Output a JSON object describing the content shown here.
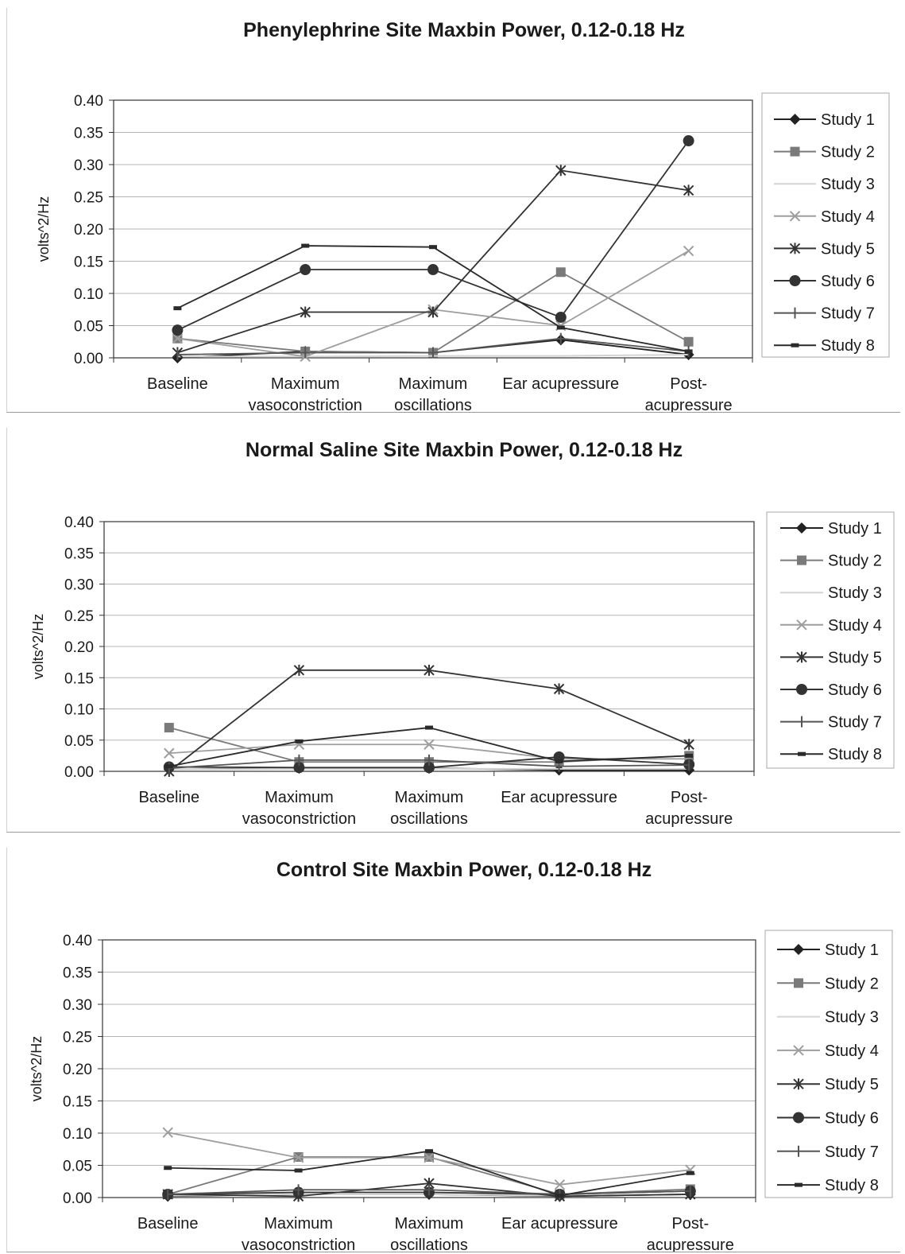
{
  "series_styles": [
    {
      "name": "Study 1",
      "color": "#222222",
      "marker": "diamond"
    },
    {
      "name": "Study 2",
      "color": "#7a7a7a",
      "marker": "square"
    },
    {
      "name": "Study 3",
      "color": "#d4d4d4",
      "marker": "none"
    },
    {
      "name": "Study 4",
      "color": "#9e9e9e",
      "marker": "x"
    },
    {
      "name": "Study 5",
      "color": "#333333",
      "marker": "star"
    },
    {
      "name": "Study 6",
      "color": "#333333",
      "marker": "circle"
    },
    {
      "name": "Study 7",
      "color": "#555555",
      "marker": "plus"
    },
    {
      "name": "Study 8",
      "color": "#2a2a2a",
      "marker": "dash"
    }
  ],
  "chart_data": [
    {
      "type": "line",
      "title": "Phenylephrine Site Maxbin Power, 0.12-0.18 Hz",
      "ylabel": "volts^2/Hz",
      "xlabel": "",
      "ylim": [
        0,
        0.4
      ],
      "yticks": [
        "0.00",
        "0.05",
        "0.10",
        "0.15",
        "0.20",
        "0.25",
        "0.30",
        "0.35",
        "0.40"
      ],
      "categories": [
        [
          "Baseline"
        ],
        [
          "Maximum",
          "vasoconstriction"
        ],
        [
          "Maximum",
          "oscillations"
        ],
        [
          "Ear acupressure"
        ],
        [
          "Post-",
          "acupressure"
        ]
      ],
      "legend_position": "right",
      "series": [
        {
          "name": "Study 1",
          "values": [
            0.0,
            0.01,
            0.008,
            0.028,
            0.005
          ]
        },
        {
          "name": "Study 2",
          "values": [
            0.03,
            0.01,
            0.008,
            0.133,
            0.025
          ]
        },
        {
          "name": "Study 3",
          "values": [
            0.002,
            0.002,
            0.003,
            0.003,
            0.005
          ]
        },
        {
          "name": "Study 4",
          "values": [
            0.03,
            0.002,
            0.075,
            0.05,
            0.166
          ]
        },
        {
          "name": "Study 5",
          "values": [
            0.008,
            0.071,
            0.071,
            0.291,
            0.26
          ]
        },
        {
          "name": "Study 6",
          "values": [
            0.043,
            0.137,
            0.137,
            0.063,
            0.337
          ]
        },
        {
          "name": "Study 7",
          "values": [
            0.005,
            0.008,
            0.008,
            0.03,
            0.01
          ]
        },
        {
          "name": "Study 8",
          "values": [
            0.077,
            0.174,
            0.172,
            0.047,
            0.01
          ]
        }
      ]
    },
    {
      "type": "line",
      "title": "Normal Saline Site Maxbin Power, 0.12-0.18 Hz",
      "ylabel": "volts^2/Hz",
      "xlabel": "",
      "ylim": [
        0,
        0.4
      ],
      "yticks": [
        "0.00",
        "0.05",
        "0.10",
        "0.15",
        "0.20",
        "0.25",
        "0.30",
        "0.35",
        "0.40"
      ],
      "categories": [
        [
          "Baseline"
        ],
        [
          "Maximum",
          "vasoconstriction"
        ],
        [
          "Maximum",
          "oscillations"
        ],
        [
          "Ear acupressure"
        ],
        [
          "Post-",
          "acupressure"
        ]
      ],
      "legend_position": "right",
      "series": [
        {
          "name": "Study 1",
          "values": [
            0.003,
            0.005,
            0.005,
            0.002,
            0.002
          ]
        },
        {
          "name": "Study 2",
          "values": [
            0.07,
            0.015,
            0.015,
            0.015,
            0.025
          ]
        },
        {
          "name": "Study 3",
          "values": [
            0.003,
            0.004,
            0.004,
            0.004,
            0.004
          ]
        },
        {
          "name": "Study 4",
          "values": [
            0.029,
            0.043,
            0.043,
            0.02,
            0.02
          ]
        },
        {
          "name": "Study 5",
          "values": [
            0.0,
            0.162,
            0.162,
            0.132,
            0.043
          ]
        },
        {
          "name": "Study 6",
          "values": [
            0.007,
            0.006,
            0.006,
            0.023,
            0.011
          ]
        },
        {
          "name": "Study 7",
          "values": [
            0.005,
            0.018,
            0.018,
            0.008,
            0.01
          ]
        },
        {
          "name": "Study 8",
          "values": [
            0.008,
            0.048,
            0.07,
            0.016,
            0.025
          ]
        }
      ]
    },
    {
      "type": "line",
      "title": "Control Site Maxbin Power, 0.12-0.18 Hz",
      "ylabel": "volts^2/Hz",
      "xlabel": "",
      "ylim": [
        0,
        0.4
      ],
      "yticks": [
        "0.00",
        "0.05",
        "0.10",
        "0.15",
        "0.20",
        "0.25",
        "0.30",
        "0.35",
        "0.40"
      ],
      "categories": [
        [
          "Baseline"
        ],
        [
          "Maximum",
          "vasoconstriction"
        ],
        [
          "Maximum",
          "oscillations"
        ],
        [
          "Ear acupressure"
        ],
        [
          "Post-",
          "acupressure"
        ]
      ],
      "legend_position": "right",
      "series": [
        {
          "name": "Study 1",
          "values": [
            0.002,
            0.005,
            0.005,
            0.002,
            0.005
          ]
        },
        {
          "name": "Study 2",
          "values": [
            0.005,
            0.063,
            0.063,
            0.005,
            0.013
          ]
        },
        {
          "name": "Study 3",
          "values": [
            0.003,
            0.005,
            0.005,
            0.003,
            0.005
          ]
        },
        {
          "name": "Study 4",
          "values": [
            0.101,
            0.062,
            0.062,
            0.02,
            0.043
          ]
        },
        {
          "name": "Study 5",
          "values": [
            0.005,
            0.002,
            0.022,
            0.002,
            0.005
          ]
        },
        {
          "name": "Study 6",
          "values": [
            0.005,
            0.008,
            0.008,
            0.005,
            0.01
          ]
        },
        {
          "name": "Study 7",
          "values": [
            0.005,
            0.012,
            0.012,
            0.005,
            0.01
          ]
        },
        {
          "name": "Study 8",
          "values": [
            0.046,
            0.042,
            0.072,
            0.003,
            0.038
          ]
        }
      ]
    }
  ]
}
